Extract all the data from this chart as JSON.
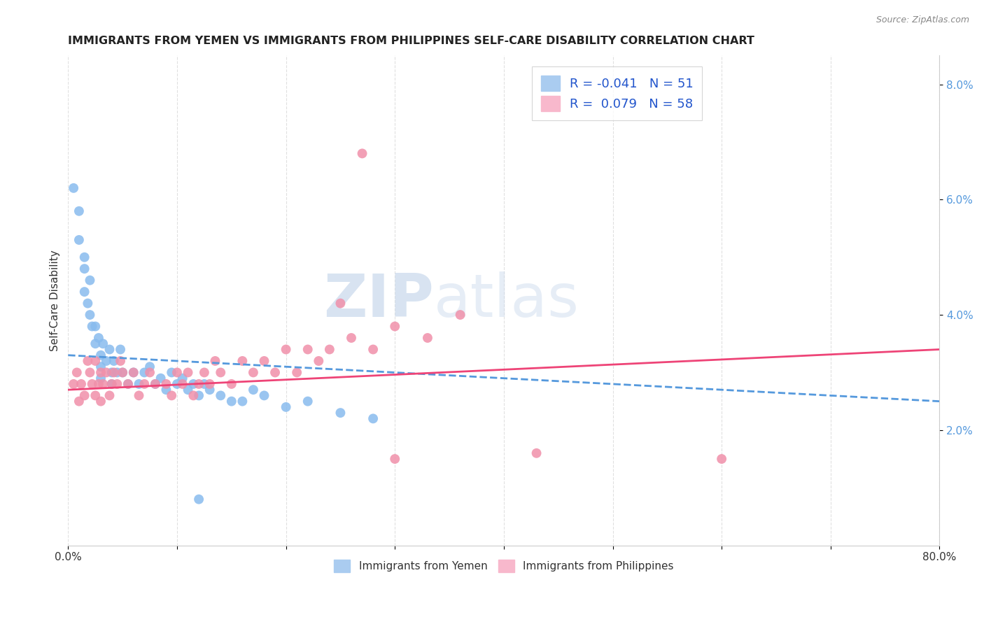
{
  "title": "IMMIGRANTS FROM YEMEN VS IMMIGRANTS FROM PHILIPPINES SELF-CARE DISABILITY CORRELATION CHART",
  "source": "Source: ZipAtlas.com",
  "ylabel": "Self-Care Disability",
  "xlim": [
    0.0,
    0.8
  ],
  "ylim": [
    0.0,
    0.085
  ],
  "xticks": [
    0.0,
    0.1,
    0.2,
    0.3,
    0.4,
    0.5,
    0.6,
    0.7,
    0.8
  ],
  "yticks_right": [
    0.02,
    0.04,
    0.06,
    0.08
  ],
  "ytick_right_labels": [
    "2.0%",
    "4.0%",
    "6.0%",
    "8.0%"
  ],
  "legend_blue_label": "R = -0.041   N = 51",
  "legend_pink_label": "R =  0.079   N = 58",
  "legend_blue_color": "#aaccf0",
  "legend_pink_color": "#f8b8cc",
  "scatter_blue_color": "#88bbee",
  "scatter_pink_color": "#f090aa",
  "trend_blue_color": "#5599dd",
  "trend_pink_color": "#ee4477",
  "watermark_zip": "ZIP",
  "watermark_atlas": "atlas",
  "background_color": "#ffffff",
  "grid_color": "#e0e0e0",
  "blue_x": [
    0.005,
    0.01,
    0.01,
    0.015,
    0.015,
    0.015,
    0.018,
    0.02,
    0.02,
    0.022,
    0.025,
    0.025,
    0.028,
    0.03,
    0.03,
    0.03,
    0.032,
    0.035,
    0.038,
    0.04,
    0.04,
    0.042,
    0.045,
    0.048,
    0.05,
    0.055,
    0.06,
    0.065,
    0.07,
    0.075,
    0.08,
    0.085,
    0.09,
    0.095,
    0.1,
    0.105,
    0.11,
    0.115,
    0.12,
    0.125,
    0.13,
    0.14,
    0.15,
    0.16,
    0.17,
    0.18,
    0.2,
    0.22,
    0.25,
    0.28,
    0.12
  ],
  "blue_y": [
    0.062,
    0.058,
    0.053,
    0.05,
    0.048,
    0.044,
    0.042,
    0.046,
    0.04,
    0.038,
    0.035,
    0.038,
    0.036,
    0.033,
    0.031,
    0.029,
    0.035,
    0.032,
    0.034,
    0.03,
    0.028,
    0.032,
    0.03,
    0.034,
    0.03,
    0.028,
    0.03,
    0.028,
    0.03,
    0.031,
    0.028,
    0.029,
    0.027,
    0.03,
    0.028,
    0.029,
    0.027,
    0.028,
    0.026,
    0.028,
    0.027,
    0.026,
    0.025,
    0.025,
    0.027,
    0.026,
    0.024,
    0.025,
    0.023,
    0.022,
    0.008
  ],
  "pink_x": [
    0.005,
    0.008,
    0.01,
    0.012,
    0.015,
    0.018,
    0.02,
    0.022,
    0.025,
    0.025,
    0.028,
    0.03,
    0.03,
    0.032,
    0.035,
    0.038,
    0.04,
    0.042,
    0.045,
    0.048,
    0.05,
    0.055,
    0.06,
    0.065,
    0.07,
    0.075,
    0.08,
    0.09,
    0.095,
    0.1,
    0.105,
    0.11,
    0.115,
    0.12,
    0.125,
    0.13,
    0.135,
    0.14,
    0.15,
    0.16,
    0.17,
    0.18,
    0.19,
    0.2,
    0.21,
    0.22,
    0.23,
    0.24,
    0.25,
    0.26,
    0.28,
    0.3,
    0.33,
    0.36,
    0.27,
    0.3,
    0.43,
    0.6
  ],
  "pink_y": [
    0.028,
    0.03,
    0.025,
    0.028,
    0.026,
    0.032,
    0.03,
    0.028,
    0.026,
    0.032,
    0.028,
    0.03,
    0.025,
    0.028,
    0.03,
    0.026,
    0.028,
    0.03,
    0.028,
    0.032,
    0.03,
    0.028,
    0.03,
    0.026,
    0.028,
    0.03,
    0.028,
    0.028,
    0.026,
    0.03,
    0.028,
    0.03,
    0.026,
    0.028,
    0.03,
    0.028,
    0.032,
    0.03,
    0.028,
    0.032,
    0.03,
    0.032,
    0.03,
    0.034,
    0.03,
    0.034,
    0.032,
    0.034,
    0.042,
    0.036,
    0.034,
    0.038,
    0.036,
    0.04,
    0.068,
    0.015,
    0.016,
    0.015
  ]
}
